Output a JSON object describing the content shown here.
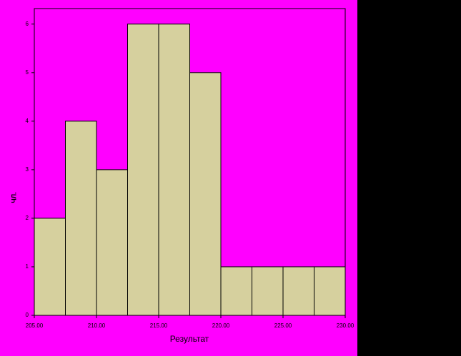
{
  "chart_data": {
    "type": "histogram",
    "x_label": "Результат",
    "y_label": "ЧЛ.",
    "bins": [
      205,
      207.5,
      210,
      212.5,
      215,
      217.5,
      220,
      222.5,
      225,
      227.5,
      230
    ],
    "values": [
      2,
      4,
      3,
      6,
      6,
      5,
      1,
      1,
      1,
      1
    ],
    "color": "#d6d09e",
    "xlim": [
      205,
      230
    ],
    "xticks": [
      {
        "value": 205,
        "label": "205.00"
      },
      {
        "value": 210,
        "label": "210.00"
      },
      {
        "value": 215,
        "label": "215.00"
      },
      {
        "value": 220,
        "label": "220.00"
      },
      {
        "value": 225,
        "label": "225.00"
      },
      {
        "value": 230,
        "label": "230.00"
      }
    ],
    "ylim": [
      0,
      6.32
    ],
    "yticks": [
      0,
      1,
      2,
      3,
      4,
      5,
      6
    ]
  }
}
